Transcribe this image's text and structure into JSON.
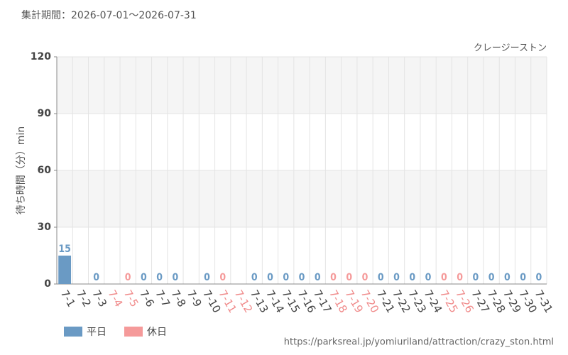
{
  "chart_data": {
    "type": "bar",
    "title": "集計期間：2026-07-01～2026-07-31",
    "subtitle": "クレージーストン",
    "y_label": "待ち時間（分）min",
    "source": "https://parksreal.jp/yomiuriland/attraction/crazy_ston.html",
    "categories": [
      "7-1",
      "7-2",
      "7-3",
      "7-4",
      "7-5",
      "7-6",
      "7-7",
      "7-8",
      "7-9",
      "7-10",
      "7-11",
      "7-12",
      "7-13",
      "7-14",
      "7-15",
      "7-16",
      "7-17",
      "7-18",
      "7-19",
      "7-20",
      "7-21",
      "7-22",
      "7-23",
      "7-24",
      "7-25",
      "7-26",
      "7-27",
      "7-28",
      "7-29",
      "7-30",
      "7-31"
    ],
    "category_colors": [
      "#444",
      "#444",
      "#444",
      "#f08a8a",
      "#f08a8a",
      "#444",
      "#444",
      "#444",
      "#444",
      "#444",
      "#f08a8a",
      "#f08a8a",
      "#444",
      "#444",
      "#444",
      "#444",
      "#444",
      "#f08a8a",
      "#f08a8a",
      "#f08a8a",
      "#444",
      "#444",
      "#444",
      "#444",
      "#f08a8a",
      "#f08a8a",
      "#444",
      "#444",
      "#444",
      "#444",
      "#444"
    ],
    "series": [
      {
        "name": "平日",
        "color": "#6a9ac4",
        "values": [
          15,
          null,
          0,
          null,
          null,
          0,
          0,
          0,
          null,
          0,
          null,
          null,
          0,
          0,
          0,
          0,
          0,
          null,
          null,
          null,
          0,
          0,
          0,
          0,
          null,
          null,
          0,
          0,
          0,
          0,
          0
        ]
      },
      {
        "name": "休日",
        "color": "#f59a9a",
        "values": [
          null,
          null,
          null,
          null,
          0,
          null,
          null,
          null,
          null,
          null,
          0,
          null,
          null,
          null,
          null,
          null,
          null,
          0,
          0,
          0,
          null,
          null,
          null,
          null,
          0,
          0,
          null,
          null,
          null,
          null,
          null
        ]
      }
    ],
    "ylim": [
      0,
      120
    ],
    "yticks": [
      0,
      30,
      60,
      90,
      120
    ],
    "grid": true
  }
}
